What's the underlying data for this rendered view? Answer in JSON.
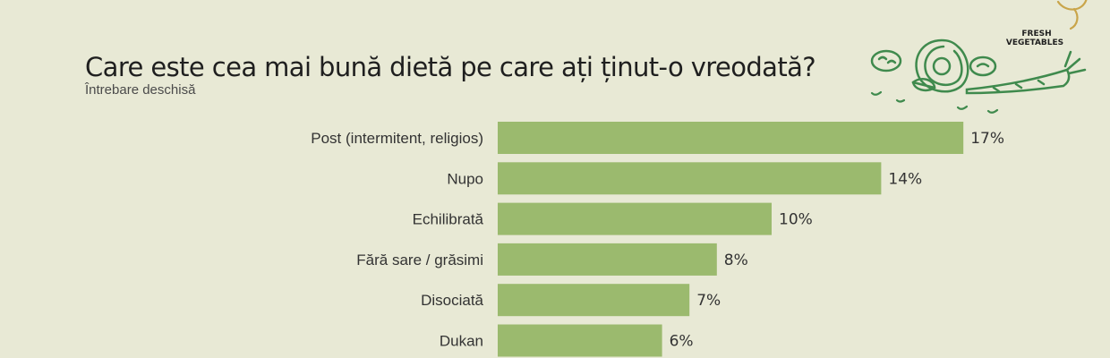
{
  "header": {
    "title": "Care este cea mai bună dietă pe care ați ținut-o vreodată?",
    "subtitle": "Întrebare deschisă"
  },
  "decoration": {
    "badge_line1": "FRESH",
    "badge_line2": "VEGETABLES"
  },
  "colors": {
    "background": "#e8e9d5",
    "bar": "#9bba6e",
    "text": "#333333",
    "illustration": "#3f8a4d"
  },
  "chart_data": {
    "type": "bar",
    "orientation": "horizontal",
    "categories": [
      "Post (intermitent, religios)",
      "Nupo",
      "Echilibrată",
      "Fără sare / grăsimi",
      "Disociată",
      "Dukan"
    ],
    "values": [
      17,
      14,
      10,
      8,
      7,
      6
    ],
    "value_labels": [
      "17%",
      "14%",
      "10%",
      "8%",
      "7%",
      "6%"
    ],
    "unit": "%",
    "grid": false,
    "legend": "none"
  }
}
